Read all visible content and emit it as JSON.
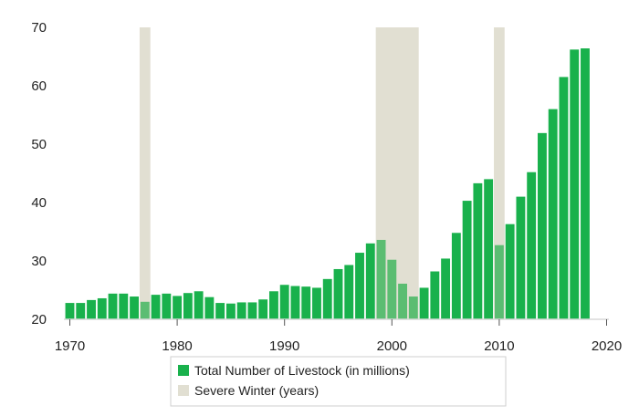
{
  "chart_data": {
    "type": "bar",
    "title": "",
    "xlabel": "",
    "ylabel": "",
    "xlim": [
      1970,
      2020
    ],
    "ylim": [
      20,
      70
    ],
    "xticks": [
      1970,
      1980,
      1990,
      2000,
      2010,
      2020
    ],
    "yticks": [
      20,
      30,
      40,
      50,
      60,
      70
    ],
    "xtick_labels": [
      "1970",
      "1980",
      "1990",
      "2000",
      "2010",
      "2020"
    ],
    "ytick_labels": [
      "20",
      "30",
      "40",
      "50",
      "60",
      "70"
    ],
    "grid": false,
    "legend_position": "bottom-center",
    "series": [
      {
        "name": "Total Number of Livestock (in millions)",
        "color": "#19b14c",
        "x": [
          1970,
          1971,
          1972,
          1973,
          1974,
          1975,
          1976,
          1977,
          1978,
          1979,
          1980,
          1981,
          1982,
          1983,
          1984,
          1985,
          1986,
          1987,
          1988,
          1989,
          1990,
          1991,
          1992,
          1993,
          1994,
          1995,
          1996,
          1997,
          1998,
          1999,
          2000,
          2001,
          2002,
          2003,
          2004,
          2005,
          2006,
          2007,
          2008,
          2009,
          2010,
          2011,
          2012,
          2013,
          2014,
          2015,
          2016,
          2017,
          2018
        ],
        "values": [
          22.8,
          22.8,
          23.3,
          23.6,
          24.4,
          24.4,
          23.9,
          23.0,
          24.2,
          24.4,
          24.0,
          24.5,
          24.8,
          23.8,
          22.8,
          22.7,
          22.9,
          22.9,
          23.4,
          24.8,
          25.9,
          25.7,
          25.6,
          25.4,
          26.9,
          28.6,
          29.3,
          31.4,
          33.0,
          33.6,
          30.2,
          26.1,
          23.9,
          25.4,
          28.2,
          30.4,
          34.8,
          40.3,
          43.3,
          44.0,
          32.7,
          36.3,
          41.0,
          45.2,
          51.9,
          56.0,
          61.5,
          66.2,
          66.4
        ]
      },
      {
        "name": "Severe Winter (years)",
        "color": "#e1dfd2",
        "periods": [
          [
            1976.5,
            1977.5
          ],
          [
            1998.5,
            2002.5
          ],
          [
            2009.5,
            2010.5
          ]
        ]
      }
    ]
  },
  "legend": {
    "items": [
      {
        "label": "Total Number of Livestock (in millions)",
        "color": "#19b14c"
      },
      {
        "label": "Severe Winter (years)",
        "color": "#e1dfd2"
      }
    ]
  }
}
